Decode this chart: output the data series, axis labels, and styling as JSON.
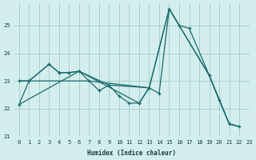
{
  "xlabel": "Humidex (Indice chaleur)",
  "bg_color": "#d4eeee",
  "grid_color": "#a8d0d0",
  "line_color": "#1a6b6b",
  "xlim": [
    -0.5,
    23
  ],
  "ylim": [
    21,
    25.8
  ],
  "yticks": [
    21,
    22,
    23,
    24,
    25
  ],
  "xticks": [
    0,
    1,
    2,
    3,
    4,
    5,
    6,
    7,
    8,
    9,
    10,
    11,
    12,
    13,
    14,
    15,
    16,
    17,
    18,
    19,
    20,
    21,
    22,
    23
  ],
  "series": [
    {
      "x": [
        0,
        1,
        3,
        4,
        5,
        6,
        7,
        8,
        9,
        10,
        11,
        12,
        13
      ],
      "y": [
        23.0,
        23.0,
        23.6,
        23.3,
        23.3,
        23.35,
        23.0,
        22.65,
        22.85,
        22.45,
        22.2,
        22.2,
        22.75
      ],
      "markers": true
    },
    {
      "x": [
        0,
        1,
        3,
        4,
        5,
        6,
        12,
        13,
        14,
        15,
        16,
        17,
        19,
        20,
        21,
        22
      ],
      "y": [
        22.15,
        23.0,
        23.6,
        23.3,
        23.3,
        23.35,
        22.2,
        22.75,
        22.55,
        25.6,
        25.0,
        24.9,
        23.2,
        22.3,
        21.45,
        21.35
      ],
      "markers": true
    },
    {
      "x": [
        0,
        7,
        13,
        15,
        16,
        19,
        21,
        22
      ],
      "y": [
        23.0,
        23.0,
        22.75,
        25.6,
        25.0,
        23.2,
        21.45,
        21.35
      ],
      "markers": false
    },
    {
      "x": [
        0,
        6,
        9,
        13,
        15,
        19,
        21,
        22
      ],
      "y": [
        22.15,
        23.35,
        22.85,
        22.75,
        25.6,
        23.2,
        21.45,
        21.35
      ],
      "markers": false
    }
  ]
}
